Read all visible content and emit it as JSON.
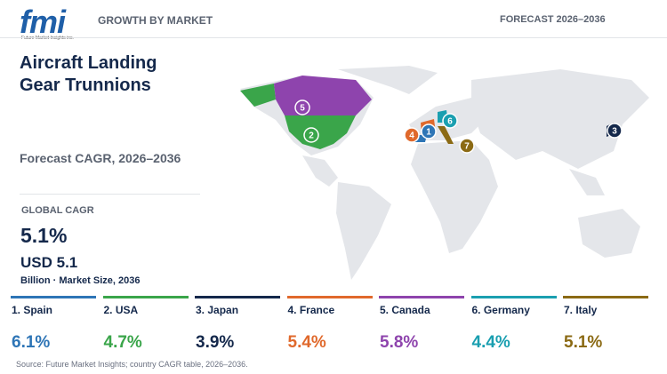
{
  "header": {
    "logo": "fmi",
    "logo_caption": "Future Market Insights inc.",
    "section": "GROWTH BY MARKET",
    "period": "FORECAST 2026–2036"
  },
  "title": "Aircraft Landing Gear Trunnions",
  "subtitle": "Forecast CAGR, 2026–2036",
  "global": {
    "label": "GLOBAL CAGR",
    "cagr": "5.1%",
    "market_size": "USD 5.1",
    "market_size_note": "Billion · Market Size, 2036"
  },
  "countries": [
    {
      "label": "1. Spain",
      "marker": "1",
      "cagr": "6.1%",
      "color": "#2e75b6"
    },
    {
      "label": "2. USA",
      "marker": "2",
      "cagr": "4.7%",
      "color": "#3aa54a"
    },
    {
      "label": "3. Japan",
      "marker": "3",
      "cagr": "3.9%",
      "color": "#14284b"
    },
    {
      "label": "4. France",
      "marker": "4",
      "cagr": "5.4%",
      "color": "#e0692c"
    },
    {
      "label": "5. Canada",
      "marker": "5",
      "cagr": "5.8%",
      "color": "#8e44ad"
    },
    {
      "label": "6. Germany",
      "marker": "6",
      "cagr": "4.4%",
      "color": "#1a9fb0"
    },
    {
      "label": "7. Italy",
      "marker": "7",
      "cagr": "5.1%",
      "color": "#8b6a14"
    }
  ],
  "source": "Source: Future Market Insights; country CAGR table, 2026–2036."
}
